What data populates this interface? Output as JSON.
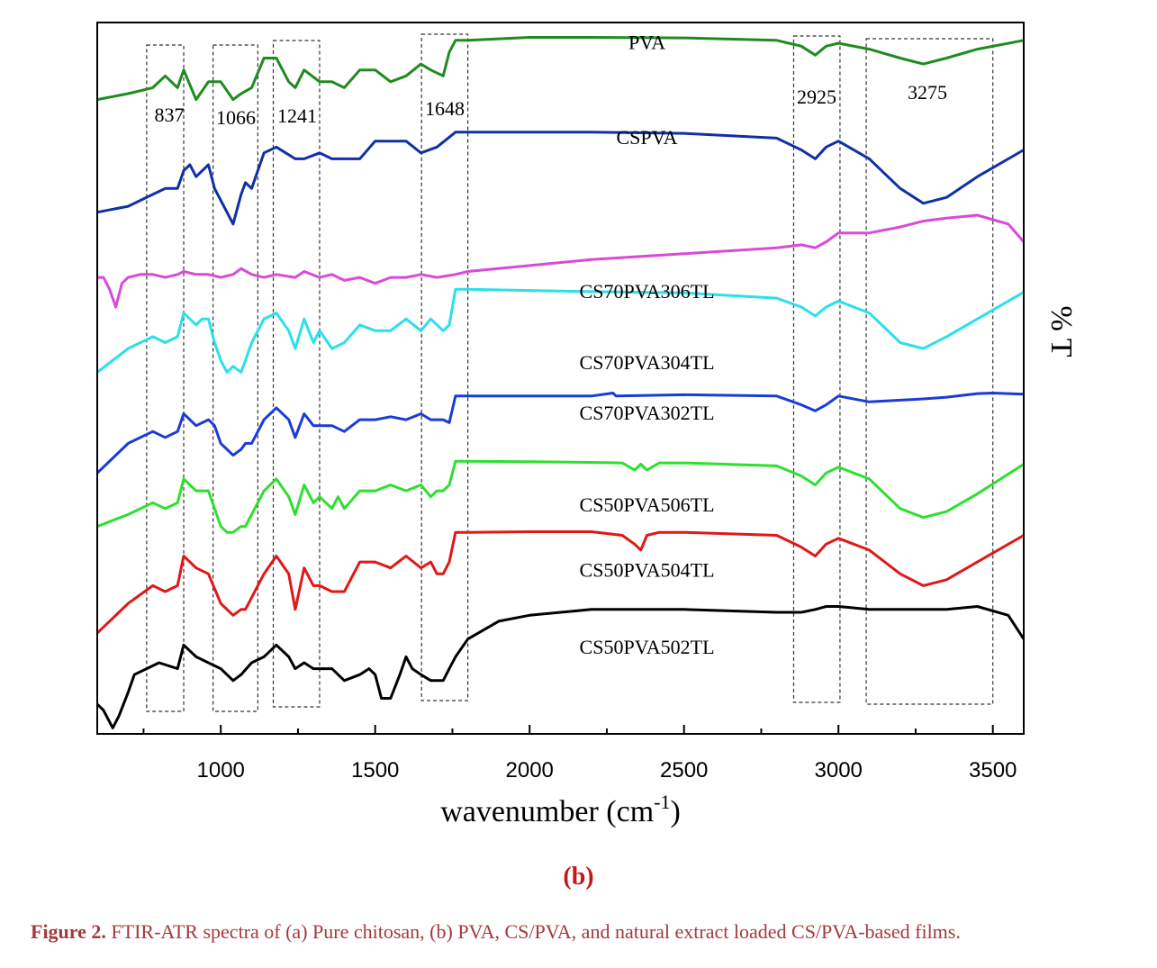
{
  "chart_data": {
    "type": "line",
    "title": "",
    "xlabel": "wavenumber (cm",
    "xlabel_sup": "-1",
    "xlabel_close": ")",
    "ylabel": "% T",
    "xlim": [
      600,
      3600
    ],
    "x_reversed": false,
    "xticks": [
      1000,
      1500,
      2000,
      2500,
      3000,
      3500
    ],
    "grid": false,
    "legend": "none",
    "y_units": "arbitrary offset",
    "series": [
      {
        "name": "PVA",
        "color": "#1e8c1e",
        "x": [
          600,
          700,
          780,
          820,
          860,
          880,
          920,
          960,
          1000,
          1040,
          1066,
          1100,
          1140,
          1180,
          1220,
          1241,
          1270,
          1320,
          1360,
          1400,
          1450,
          1500,
          1550,
          1600,
          1648,
          1680,
          1720,
          1740,
          1760,
          1800,
          2000,
          2200,
          2500,
          2800,
          2880,
          2925,
          2960,
          3000,
          3100,
          3200,
          3275,
          3350,
          3450,
          3600
        ],
        "y": [
          91,
          90,
          89,
          87,
          89,
          86,
          91,
          88,
          88,
          91,
          90,
          89,
          84,
          84,
          88,
          89,
          86,
          88,
          88,
          89,
          86,
          86,
          88,
          87,
          85,
          86,
          87,
          83,
          81,
          81,
          80.5,
          80.5,
          80.6,
          81,
          82,
          83.5,
          82,
          81.5,
          82.5,
          84,
          85,
          84,
          82.5,
          81
        ]
      },
      {
        "name": "CSPVA",
        "color": "#1030a8",
        "x": [
          600,
          700,
          780,
          820,
          860,
          880,
          900,
          920,
          940,
          960,
          980,
          1000,
          1020,
          1040,
          1066,
          1080,
          1100,
          1140,
          1180,
          1241,
          1270,
          1320,
          1360,
          1400,
          1450,
          1500,
          1600,
          1648,
          1700,
          1760,
          1800,
          2000,
          2200,
          2500,
          2800,
          2880,
          2925,
          2960,
          3000,
          3100,
          3200,
          3275,
          3350,
          3450,
          3600
        ],
        "y": [
          110,
          109,
          107,
          106,
          106,
          103,
          102,
          104,
          103,
          102,
          106,
          108,
          110,
          112,
          107,
          105,
          106,
          100,
          99,
          101,
          101,
          100,
          101,
          101,
          101,
          98,
          98,
          100,
          99,
          96.5,
          96.5,
          96.5,
          96.5,
          96.7,
          97.5,
          99.5,
          101,
          99,
          98,
          101,
          106,
          108.5,
          107.5,
          104,
          99.5
        ]
      },
      {
        "name": "CS70PVA306TL",
        "color": "#d94ad9",
        "x": [
          600,
          620,
          640,
          660,
          680,
          700,
          740,
          780,
          820,
          860,
          880,
          920,
          960,
          1000,
          1040,
          1066,
          1100,
          1140,
          1180,
          1241,
          1270,
          1320,
          1360,
          1400,
          1450,
          1500,
          1550,
          1600,
          1648,
          1700,
          1760,
          1800,
          2000,
          2200,
          2500,
          2800,
          2880,
          2925,
          2960,
          3000,
          3100,
          3200,
          3275,
          3350,
          3450,
          3550,
          3600
        ],
        "y": [
          121,
          121,
          123,
          126,
          122,
          121,
          120.5,
          120.5,
          121,
          120.5,
          120,
          120.5,
          120.5,
          121,
          120.5,
          119.5,
          120.5,
          121,
          120.5,
          121,
          120,
          121,
          120.5,
          121.5,
          121,
          122,
          121,
          121,
          120.5,
          121,
          120.5,
          120,
          119,
          118,
          117,
          116,
          115.5,
          116,
          115,
          113.5,
          113.5,
          112.5,
          111.5,
          111,
          110.5,
          112,
          115
        ]
      },
      {
        "name": "CS70PVA304TL",
        "color": "#2ae0ea",
        "x": [
          600,
          700,
          780,
          820,
          860,
          880,
          920,
          940,
          960,
          980,
          1000,
          1020,
          1040,
          1066,
          1080,
          1100,
          1140,
          1180,
          1220,
          1241,
          1270,
          1300,
          1320,
          1360,
          1400,
          1450,
          1500,
          1550,
          1600,
          1648,
          1680,
          1720,
          1740,
          1760,
          1800,
          2000,
          2200,
          2500,
          2800,
          2880,
          2925,
          2960,
          3000,
          3100,
          3200,
          3275,
          3350,
          3450,
          3600
        ],
        "y": [
          137,
          133,
          131,
          132,
          131,
          127,
          129,
          128,
          128,
          132,
          135,
          137,
          136,
          137,
          135,
          132,
          128,
          127,
          130,
          133,
          128,
          132,
          130,
          133,
          132,
          129,
          130,
          130,
          128,
          130,
          128,
          130,
          129,
          123,
          123,
          123.2,
          123.4,
          123.6,
          124.5,
          126,
          127.5,
          126,
          125,
          127,
          132,
          133,
          131,
          128,
          123.5
        ]
      },
      {
        "name": "CS70PVA302TL",
        "color": "#1a3cd6",
        "x": [
          600,
          700,
          780,
          820,
          860,
          880,
          920,
          960,
          980,
          1000,
          1020,
          1040,
          1066,
          1080,
          1100,
          1140,
          1180,
          1220,
          1241,
          1270,
          1300,
          1320,
          1360,
          1400,
          1450,
          1500,
          1550,
          1600,
          1648,
          1680,
          1720,
          1740,
          1760,
          1800,
          2000,
          2200,
          2270,
          2280,
          2500,
          2800,
          2880,
          2925,
          2960,
          3000,
          3100,
          3200,
          3275,
          3350,
          3450,
          3500,
          3600
        ],
        "y": [
          154,
          149,
          147,
          148,
          147,
          144,
          146,
          145,
          146,
          149,
          150,
          151,
          150,
          149,
          149,
          145,
          143,
          145,
          148,
          144,
          146,
          146,
          146,
          147,
          145,
          145,
          144.5,
          145,
          144,
          145,
          145,
          145.5,
          141,
          141,
          141,
          141,
          140.5,
          141,
          140.8,
          141,
          142.5,
          143.5,
          142.5,
          141,
          142,
          141.7,
          141.5,
          141.2,
          140.6,
          140.5,
          140.7
        ]
      },
      {
        "name": "CS50PVA506TL",
        "color": "#2ee02e",
        "x": [
          600,
          700,
          780,
          820,
          860,
          880,
          920,
          960,
          1000,
          1020,
          1040,
          1066,
          1080,
          1100,
          1140,
          1180,
          1220,
          1241,
          1270,
          1300,
          1320,
          1360,
          1380,
          1400,
          1450,
          1500,
          1550,
          1600,
          1648,
          1680,
          1700,
          1720,
          1740,
          1760,
          1800,
          2000,
          2200,
          2300,
          2340,
          2360,
          2380,
          2420,
          2500,
          2800,
          2880,
          2925,
          2960,
          3000,
          3100,
          3200,
          3275,
          3350,
          3450,
          3600
        ],
        "y": [
          163,
          161,
          159,
          160,
          159,
          155,
          157,
          157,
          163,
          164,
          164,
          163,
          163,
          161,
          157,
          155,
          158,
          161,
          156,
          159,
          158,
          160,
          158,
          160,
          157,
          157,
          156,
          157,
          156,
          158,
          157,
          157,
          156,
          152,
          152,
          152.1,
          152.2,
          152.3,
          153.5,
          152.5,
          153.5,
          152.3,
          152.3,
          152.8,
          154.5,
          156,
          154,
          153,
          155,
          160,
          161.5,
          160.5,
          157.5,
          152.5
        ]
      },
      {
        "name": "CS50PVA504TL",
        "color": "#e01818",
        "x": [
          600,
          700,
          780,
          820,
          860,
          880,
          920,
          960,
          1000,
          1020,
          1040,
          1066,
          1080,
          1100,
          1140,
          1180,
          1220,
          1241,
          1270,
          1300,
          1320,
          1360,
          1400,
          1450,
          1500,
          1550,
          1600,
          1648,
          1680,
          1700,
          1720,
          1740,
          1760,
          1800,
          2000,
          2200,
          2300,
          2340,
          2360,
          2380,
          2420,
          2500,
          2800,
          2880,
          2925,
          2960,
          3000,
          3100,
          3200,
          3275,
          3350,
          3450,
          3600
        ],
        "y": [
          181,
          176,
          173,
          174,
          173,
          168,
          170,
          171,
          176,
          177,
          178,
          177,
          177,
          175,
          171,
          168,
          171,
          177,
          170,
          173,
          173,
          174,
          174,
          169,
          169,
          170,
          168,
          170,
          169,
          171,
          171,
          169,
          164,
          164,
          163.9,
          163.9,
          164.5,
          166,
          167,
          164.5,
          164,
          164,
          164.5,
          166.5,
          168,
          166,
          165,
          167,
          171,
          173,
          172,
          169,
          164.5
        ]
      },
      {
        "name": "CS50PVA502TL",
        "color": "#000000",
        "x": [
          600,
          620,
          650,
          670,
          700,
          720,
          760,
          800,
          860,
          880,
          920,
          960,
          1000,
          1040,
          1066,
          1100,
          1140,
          1180,
          1220,
          1241,
          1270,
          1300,
          1360,
          1400,
          1450,
          1480,
          1500,
          1520,
          1550,
          1580,
          1600,
          1620,
          1648,
          1680,
          1720,
          1740,
          1760,
          1800,
          1900,
          2000,
          2200,
          2500,
          2800,
          2880,
          2925,
          2960,
          3000,
          3100,
          3200,
          3275,
          3350,
          3450,
          3550,
          3600
        ],
        "y": [
          193,
          194,
          197,
          195,
          191,
          188,
          187,
          186,
          187,
          183,
          185,
          186,
          187,
          189,
          188,
          186,
          185,
          183,
          185,
          187,
          186,
          187,
          187,
          189,
          188,
          187,
          188,
          192,
          192,
          188,
          185,
          187,
          188,
          189,
          189,
          187,
          185,
          182,
          179,
          178,
          177,
          177,
          177.5,
          177.5,
          177,
          176.5,
          176.5,
          177,
          177,
          177,
          177,
          176.5,
          178,
          182
        ]
      }
    ],
    "series_labels": [
      {
        "text": "PVA",
        "x": 2380,
        "y": 82.5
      },
      {
        "text": "CSPVA",
        "x": 2380,
        "y": 98.5
      },
      {
        "text": "CS70PVA306TL",
        "x": 2380,
        "y": 124.5
      },
      {
        "text": "CS70PVA304TL",
        "x": 2380,
        "y": 136.5
      },
      {
        "text": "CS70PVA302TL",
        "x": 2380,
        "y": 145
      },
      {
        "text": "CS50PVA506TL",
        "x": 2380,
        "y": 160.5
      },
      {
        "text": "CS50PVA504TL",
        "x": 2380,
        "y": 171.5
      },
      {
        "text": "CS50PVA502TL",
        "x": 2380,
        "y": 184.5
      }
    ],
    "annotations": [
      {
        "text": "837",
        "x": 1070,
        "x_from": 760,
        "x_to": 880
      },
      {
        "text": "1066",
        "x": 1266,
        "x_from": 975,
        "x_to": 1120
      },
      {
        "text": "1241",
        "x": 1440,
        "x_from": 1170,
        "x_to": 1320
      },
      {
        "text": "1648",
        "x": 1930,
        "x_from": 1650,
        "x_to": 1800
      },
      {
        "text": "2925",
        "x": 2930,
        "x_from": 2855,
        "x_to": 3005
      },
      {
        "text": "3275",
        "x": 3290,
        "x_from": 3090,
        "x_to": 3500
      }
    ]
  },
  "panel_label": "(b)",
  "caption": {
    "prefix": "Figure 2.",
    "text": "FTIR-ATR spectra of (a) Pure chitosan, (b) PVA, CS/PVA, and natural extract loaded CS/PVA-based films."
  },
  "colors": {
    "caption": "#a33a3a",
    "panel_label": "#c21818",
    "axis": "#000000"
  }
}
